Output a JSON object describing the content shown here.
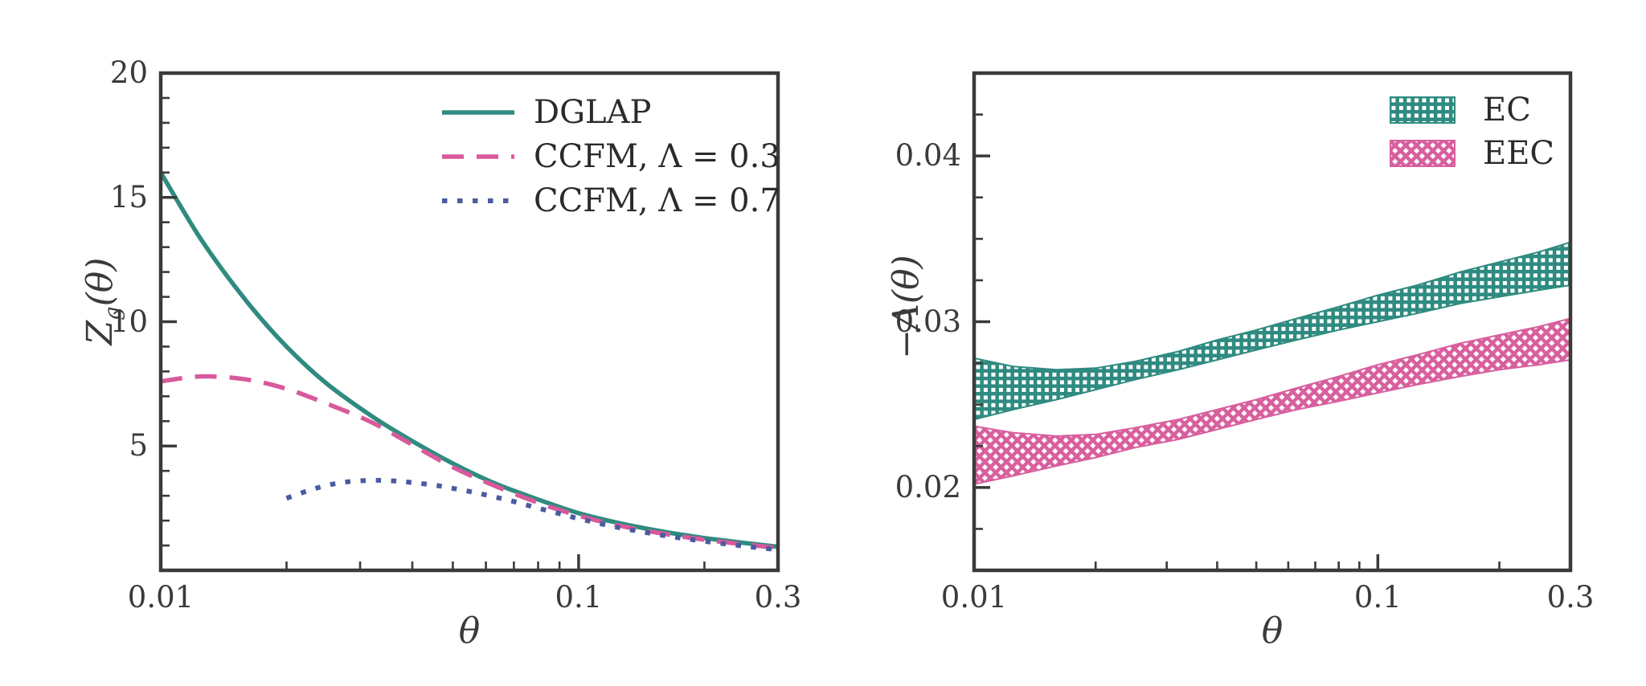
{
  "figure": {
    "background": "#ffffff",
    "axis_color": "#3a3a3a",
    "tick_label_color": "#3a3a3a"
  },
  "chart_data": [
    {
      "type": "line",
      "title": "",
      "xlabel": "θ",
      "ylabel": "Z_g(θ)",
      "ylabel_parts": {
        "base": "Z",
        "sub": "g",
        "rest": "(θ)"
      },
      "xscale": "log",
      "xlim": [
        0.01,
        0.3
      ],
      "ylim": [
        0,
        20
      ],
      "grid": false,
      "legend_position": "upper-right-inside",
      "xticks": {
        "values": [
          0.01,
          0.1,
          0.3
        ],
        "labels": [
          "0.01",
          "0.1",
          "0.3"
        ]
      },
      "x_minor_ticks": [
        0.02,
        0.03,
        0.04,
        0.05,
        0.06,
        0.07,
        0.08,
        0.09,
        0.2
      ],
      "yticks": {
        "values": [
          5,
          10,
          15,
          20
        ],
        "labels": [
          "5",
          "10",
          "15",
          "20"
        ]
      },
      "y_minor_ticks": [
        1,
        2,
        3,
        4,
        6,
        7,
        8,
        9,
        11,
        12,
        13,
        14,
        16,
        17,
        18,
        19
      ],
      "series": [
        {
          "name": "DGLAP",
          "style": "solid",
          "color": "#2f8b80",
          "x": [
            0.01,
            0.0125,
            0.016,
            0.02,
            0.025,
            0.032,
            0.04,
            0.05,
            0.063,
            0.08,
            0.1,
            0.125,
            0.16,
            0.2,
            0.25,
            0.3
          ],
          "y": [
            16.0,
            13.3,
            10.85,
            9.0,
            7.5,
            6.2,
            5.2,
            4.3,
            3.5,
            2.85,
            2.3,
            1.9,
            1.55,
            1.3,
            1.1,
            0.95
          ]
        },
        {
          "name": "CCFM,  Λ = 0.3",
          "style": "dashed",
          "color": "#d8599c",
          "x": [
            0.01,
            0.0125,
            0.016,
            0.02,
            0.025,
            0.032,
            0.04,
            0.05,
            0.063,
            0.08,
            0.1,
            0.125,
            0.16,
            0.2,
            0.25,
            0.3
          ],
          "y": [
            7.6,
            7.8,
            7.68,
            7.3,
            6.7,
            5.95,
            5.05,
            4.15,
            3.4,
            2.72,
            2.2,
            1.8,
            1.47,
            1.23,
            1.04,
            0.9
          ]
        },
        {
          "name": "CCFM,  Λ = 0.7",
          "style": "dotted",
          "color": "#4b5ba0",
          "x": [
            0.02,
            0.0225,
            0.025,
            0.028,
            0.032,
            0.036,
            0.04,
            0.045,
            0.05,
            0.056,
            0.063,
            0.071,
            0.08,
            0.09,
            0.1,
            0.125,
            0.16,
            0.2,
            0.25,
            0.3
          ],
          "y": [
            2.9,
            3.2,
            3.42,
            3.56,
            3.62,
            3.6,
            3.53,
            3.43,
            3.3,
            3.14,
            2.95,
            2.74,
            2.5,
            2.28,
            2.08,
            1.72,
            1.4,
            1.17,
            0.97,
            0.83
          ]
        }
      ]
    },
    {
      "type": "area",
      "title": "",
      "xlabel": "θ",
      "ylabel": "−A(θ)",
      "ylabel_parts": {
        "base": "−A",
        "rest": "(θ)"
      },
      "xscale": "log",
      "xlim": [
        0.01,
        0.3
      ],
      "ylim": [
        0.015,
        0.045
      ],
      "grid": false,
      "legend_position": "upper-right-inside",
      "xticks": {
        "values": [
          0.01,
          0.1,
          0.3
        ],
        "labels": [
          "0.01",
          "0.1",
          "0.3"
        ]
      },
      "x_minor_ticks": [
        0.02,
        0.03,
        0.04,
        0.05,
        0.06,
        0.07,
        0.08,
        0.09,
        0.2
      ],
      "yticks": {
        "values": [
          0.02,
          0.03,
          0.04
        ],
        "labels": [
          "0.02",
          "0.03",
          "0.04"
        ]
      },
      "y_minor_ticks": [
        0.0175,
        0.0225,
        0.025,
        0.0275,
        0.0325,
        0.035,
        0.0375,
        0.0425
      ],
      "bands": [
        {
          "name": "EC",
          "hatch": "grid",
          "color": "#2f8b80",
          "x": [
            0.01,
            0.0125,
            0.016,
            0.02,
            0.025,
            0.032,
            0.04,
            0.05,
            0.063,
            0.08,
            0.1,
            0.125,
            0.16,
            0.2,
            0.25,
            0.3
          ],
          "y_lower": [
            0.0241,
            0.0247,
            0.0253,
            0.0259,
            0.0265,
            0.0271,
            0.0277,
            0.0283,
            0.0289,
            0.0295,
            0.03,
            0.0305,
            0.0311,
            0.0315,
            0.0319,
            0.0322
          ],
          "y_upper": [
            0.0278,
            0.0273,
            0.0271,
            0.0272,
            0.0276,
            0.0282,
            0.0289,
            0.0295,
            0.0302,
            0.0309,
            0.0316,
            0.0322,
            0.033,
            0.0336,
            0.0342,
            0.0348
          ]
        },
        {
          "name": "EEC",
          "hatch": "diagonal-cross",
          "color": "#d85f9e",
          "x": [
            0.01,
            0.0125,
            0.016,
            0.02,
            0.025,
            0.032,
            0.04,
            0.05,
            0.063,
            0.08,
            0.1,
            0.125,
            0.16,
            0.2,
            0.25,
            0.3
          ],
          "y_lower": [
            0.0202,
            0.0207,
            0.0213,
            0.0218,
            0.0224,
            0.0229,
            0.0235,
            0.0241,
            0.0247,
            0.0252,
            0.0257,
            0.0262,
            0.0267,
            0.0271,
            0.0274,
            0.0277
          ],
          "y_upper": [
            0.0237,
            0.0233,
            0.0231,
            0.0232,
            0.0236,
            0.0241,
            0.0247,
            0.0253,
            0.026,
            0.0267,
            0.0274,
            0.028,
            0.0287,
            0.0292,
            0.0297,
            0.0302
          ]
        }
      ]
    }
  ]
}
